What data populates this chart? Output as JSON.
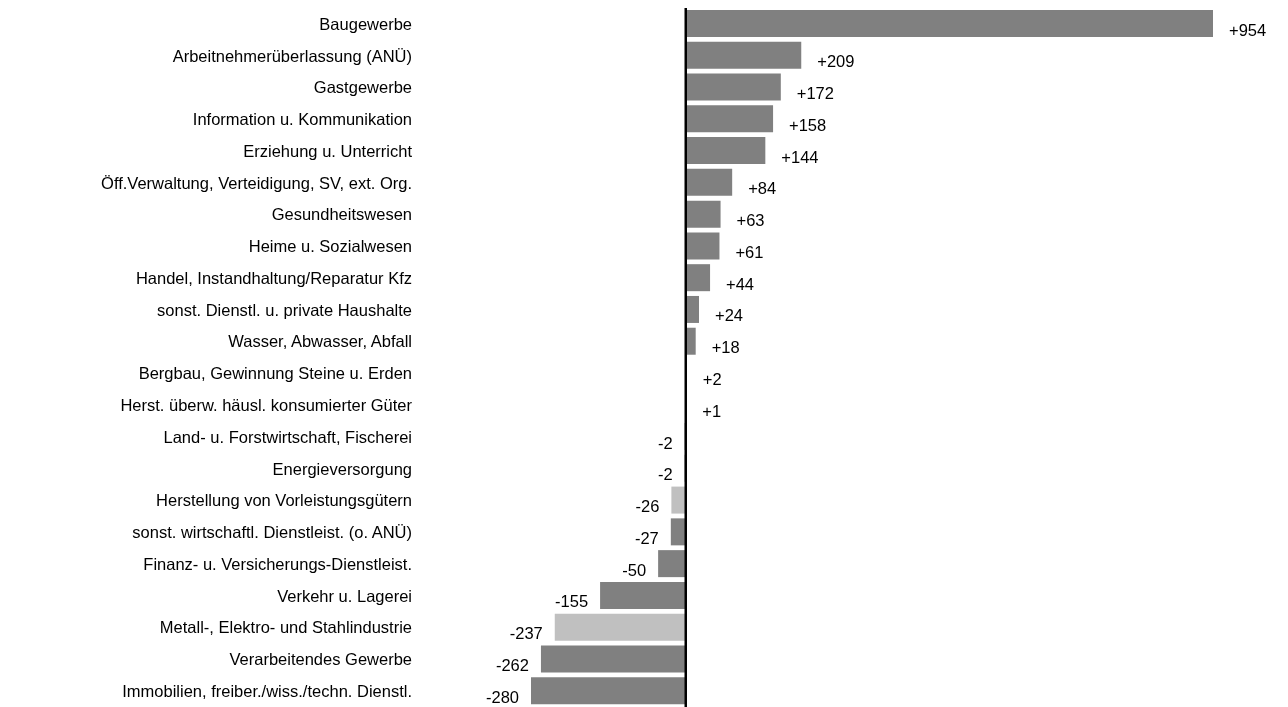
{
  "chart_data": {
    "type": "bar",
    "orientation": "horizontal",
    "tick_labels": "y",
    "categories": [
      "Baugewerbe",
      "Arbeitnehmerüberlassung (ANÜ)",
      "Gastgewerbe",
      "Information u. Kommunikation",
      "Erziehung u. Unterricht",
      "Öff.Verwaltung, Verteidigung, SV, ext. Org.",
      "Gesundheitswesen",
      "Heime u. Sozialwesen",
      "Handel, Instandhaltung/Reparatur Kfz",
      "sonst. Dienstl. u. private Haushalte",
      "Wasser, Abwasser, Abfall",
      "Bergbau, Gewinnung Steine u. Erden",
      "Herst. überw. häusl. konsumierter Güter",
      "Land- u. Forstwirtschaft, Fischerei",
      "Energieversorgung",
      "Herstellung von Vorleistungsgütern",
      "sonst. wirtschaftl. Dienstleist. (o. ANÜ)",
      "Finanz- u. Versicherungs-Dienstleist.",
      "Verkehr u. Lagerei",
      "Metall-, Elektro- und Stahlindustrie",
      "Verarbeitendes Gewerbe",
      "Immobilien, freiber./wiss./techn. Dienstl."
    ],
    "values": [
      954,
      209,
      172,
      158,
      144,
      84,
      63,
      61,
      44,
      24,
      18,
      2,
      1,
      -2,
      -2,
      -26,
      -27,
      -50,
      -155,
      -237,
      -262,
      -280
    ],
    "value_labels": [
      "+954",
      "+209",
      "+172",
      "+158",
      "+144",
      "+84",
      "+63",
      "+61",
      "+44",
      "+24",
      "+18",
      "+2",
      "+1",
      "-2",
      "-2",
      "-26",
      "-27",
      "-50",
      "-155",
      "-237",
      "-262",
      "-280"
    ],
    "colors": [
      "#808080",
      "#808080",
      "#808080",
      "#808080",
      "#808080",
      "#808080",
      "#808080",
      "#808080",
      "#808080",
      "#808080",
      "#808080",
      "#808080",
      "#808080",
      "#808080",
      "#808080",
      "#c0c0c0",
      "#808080",
      "#808080",
      "#808080",
      "#c0c0c0",
      "#808080",
      "#808080"
    ]
  }
}
